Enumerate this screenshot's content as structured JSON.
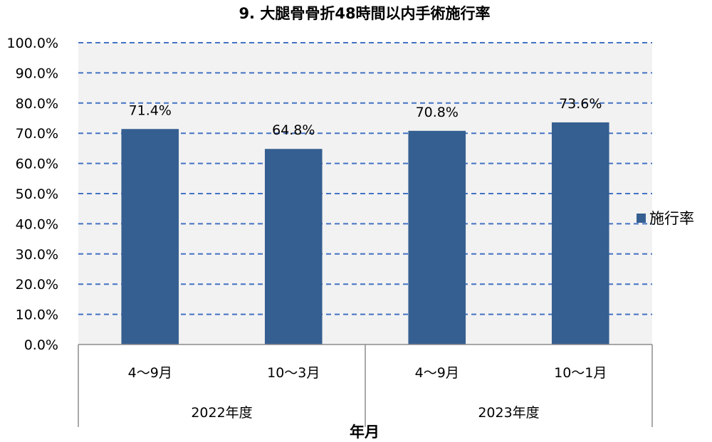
{
  "chart_data": {
    "type": "bar",
    "title": "9. 大腿骨骨折48時間以内手術施行率",
    "xlabel": "年月",
    "ylabel": "",
    "ylim": [
      0,
      100
    ],
    "yticks": [
      "0.0%",
      "10.0%",
      "20.0%",
      "30.0%",
      "40.0%",
      "50.0%",
      "60.0%",
      "70.0%",
      "80.0%",
      "90.0%",
      "100.0%"
    ],
    "categories": [
      "4〜9月",
      "10〜3月",
      "4〜9月",
      "10〜1月"
    ],
    "groups": [
      {
        "label": "2022年度",
        "span": 2
      },
      {
        "label": "2023年度",
        "span": 2
      }
    ],
    "series": [
      {
        "name": "施行率",
        "values": [
          71.4,
          64.8,
          70.8,
          73.6
        ],
        "labels": [
          "71.4%",
          "64.8%",
          "70.8%",
          "73.6%"
        ]
      }
    ],
    "bar_color": "#355F91",
    "grid_color": "#4472C4",
    "plot_bg": "#F2F2F2",
    "grid": "dashed",
    "legend_position": "right"
  }
}
